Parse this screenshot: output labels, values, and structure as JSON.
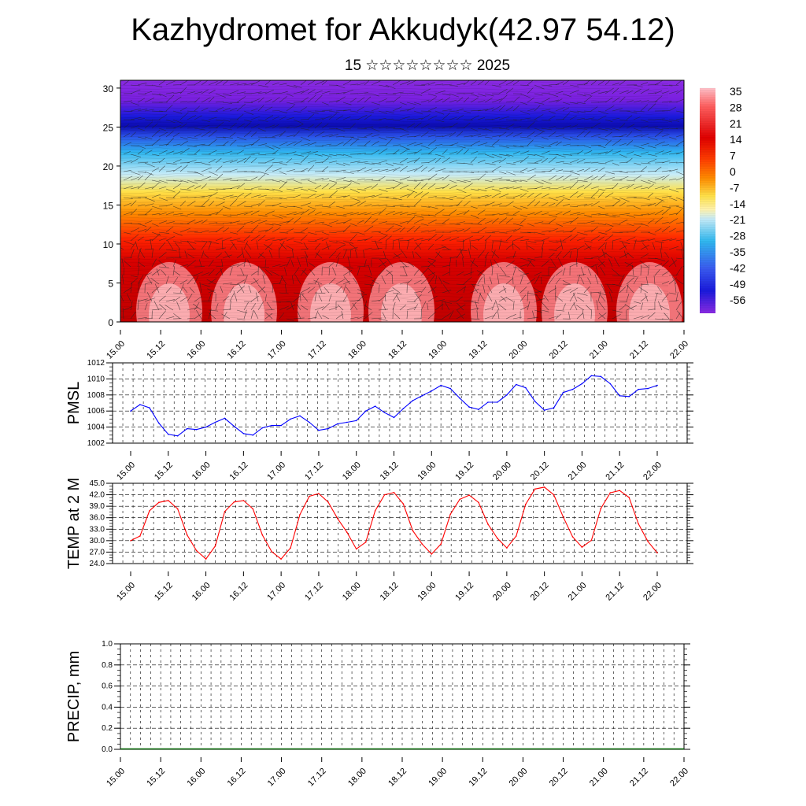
{
  "header": {
    "title": "Kazhydromet for Akkudyk(42.97 54.12)",
    "subtitle": "15 ☆☆☆☆☆☆☆☆ 2025"
  },
  "chart_data": [
    {
      "type": "heatmap",
      "name": "cross-section",
      "ylim": [
        0,
        31
      ],
      "yticks": [
        "0",
        "5",
        "10",
        "15",
        "20",
        "25",
        "30"
      ],
      "x_ticks": [
        "15.00",
        "15.12",
        "16.00",
        "16.12",
        "17.00",
        "17.12",
        "18.00",
        "18.12",
        "19.00",
        "19.12",
        "20.00",
        "20.12",
        "21.00",
        "21.12",
        "22.00"
      ],
      "colorbar_labels": [
        "35",
        "28",
        "21",
        "14",
        "7",
        "0",
        "-7",
        "-14",
        "-21",
        "-28",
        "-35",
        "-42",
        "-49",
        "-56"
      ],
      "colors": {
        "hot": "#ff9aa0",
        "red": "#e00000",
        "orange": "#ff8c00",
        "yellow": "#ffe24a",
        "cyan": "#30b8f0",
        "blue": "#1a1adc",
        "violet": "#8a2be2"
      }
    },
    {
      "type": "line",
      "name": "PMSL",
      "ylabel": "PMSL",
      "ylim": [
        1002,
        1012
      ],
      "yticks": [
        "1012",
        "1010",
        "1008",
        "1006",
        "1004",
        "1002"
      ],
      "x_ticks": [
        "15.00",
        "15.12",
        "16.00",
        "16.12",
        "17.00",
        "17.12",
        "18.00",
        "18.12",
        "19.00",
        "19.12",
        "20.00",
        "20.12",
        "21.00",
        "21.12",
        "22.00"
      ],
      "color": "#0000ff",
      "values": [
        1006.0,
        1006.8,
        1006.4,
        1004.5,
        1003.1,
        1002.9,
        1003.8,
        1003.7,
        1004.0,
        1004.6,
        1005.1,
        1004.1,
        1003.2,
        1003.0,
        1003.9,
        1004.2,
        1004.2,
        1005.0,
        1005.4,
        1004.6,
        1003.6,
        1003.8,
        1004.4,
        1004.6,
        1004.8,
        1006.0,
        1006.6,
        1005.8,
        1005.2,
        1006.3,
        1007.3,
        1007.9,
        1008.5,
        1009.2,
        1008.8,
        1007.6,
        1006.5,
        1006.2,
        1007.1,
        1007.1,
        1008.0,
        1009.3,
        1008.9,
        1007.2,
        1006.1,
        1006.4,
        1008.3,
        1008.7,
        1009.4,
        1010.4,
        1010.3,
        1009.4,
        1007.9,
        1007.8,
        1008.7,
        1008.8,
        1009.2
      ]
    },
    {
      "type": "line",
      "name": "TEMP at 2 M",
      "ylabel": "TEMP at 2 M",
      "ylim": [
        24,
        45
      ],
      "yticks": [
        "45.0",
        "42.0",
        "39.0",
        "36.0",
        "33.0",
        "30.0",
        "27.0",
        "24.0"
      ],
      "x_ticks": [
        "15.00",
        "15.12",
        "16.00",
        "16.12",
        "17.00",
        "17.12",
        "18.00",
        "18.12",
        "19.00",
        "19.12",
        "20.00",
        "20.12",
        "21.00",
        "21.12",
        "22.00"
      ],
      "color": "#ff0000",
      "values": [
        30.0,
        31.2,
        37.8,
        40.0,
        40.5,
        38.3,
        31.5,
        27.4,
        25.2,
        28.6,
        37.6,
        40.1,
        40.5,
        38.3,
        31.5,
        27.1,
        25.2,
        28.1,
        36.8,
        41.6,
        42.3,
        40.1,
        35.8,
        32.2,
        27.8,
        29.6,
        37.8,
        42.0,
        42.6,
        39.6,
        32.6,
        29.1,
        26.5,
        29.1,
        36.9,
        40.8,
        41.9,
        40.0,
        34.3,
        30.6,
        28.1,
        31.2,
        39.5,
        43.5,
        44.0,
        42.0,
        36.2,
        31.0,
        28.3,
        30.1,
        38.4,
        42.5,
        43.1,
        41.3,
        34.4,
        29.8,
        26.8
      ]
    },
    {
      "type": "bar",
      "name": "PRECIP",
      "ylabel": "PRECIP, mm",
      "ylim": [
        0.0,
        1.0
      ],
      "yticks": [
        "1.0",
        "0.8",
        "0.6",
        "0.4",
        "0.2",
        "0.0"
      ],
      "x_ticks": [
        "15.00",
        "15.12",
        "16.00",
        "16.12",
        "17.00",
        "17.12",
        "18.00",
        "18.12",
        "19.00",
        "19.12",
        "20.00",
        "20.12",
        "21.00",
        "21.12",
        "22.00"
      ],
      "color": "#006400",
      "values": [
        0,
        0,
        0,
        0,
        0,
        0,
        0,
        0,
        0,
        0,
        0,
        0,
        0,
        0,
        0,
        0,
        0,
        0,
        0,
        0,
        0,
        0,
        0,
        0,
        0,
        0,
        0,
        0,
        0,
        0,
        0,
        0,
        0,
        0,
        0,
        0,
        0,
        0,
        0,
        0,
        0,
        0,
        0,
        0,
        0,
        0,
        0,
        0,
        0,
        0,
        0,
        0,
        0,
        0,
        0,
        0,
        0
      ]
    }
  ]
}
